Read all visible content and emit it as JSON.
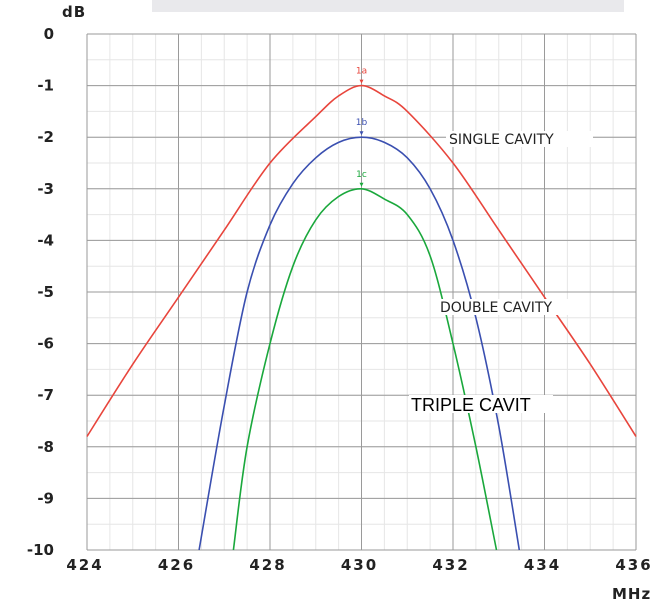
{
  "chart_data": {
    "type": "line",
    "xlabel": "MHz",
    "ylabel": "dB",
    "xlim": [
      424,
      436
    ],
    "ylim": [
      -10,
      0
    ],
    "x_ticks": [
      "424",
      "426",
      "428",
      "430",
      "432",
      "434",
      "436"
    ],
    "y_ticks": [
      "0",
      "-1",
      "-2",
      "-3",
      "-4",
      "-5",
      "-6",
      "-7",
      "-8",
      "-9",
      "-10"
    ],
    "grid": true,
    "series": [
      {
        "name": "SINGLE CAVITY",
        "color": "#e8453c",
        "marker": "1a",
        "peak": [
          430,
          -1.0
        ],
        "points": [
          [
            424,
            -7.8
          ],
          [
            425,
            -6.4
          ],
          [
            426,
            -5.1
          ],
          [
            427,
            -3.8
          ],
          [
            428,
            -2.5
          ],
          [
            429,
            -1.6
          ],
          [
            429.5,
            -1.2
          ],
          [
            430,
            -1.0
          ],
          [
            430.5,
            -1.2
          ],
          [
            431,
            -1.5
          ],
          [
            432,
            -2.5
          ],
          [
            433,
            -3.8
          ],
          [
            434,
            -5.1
          ],
          [
            435,
            -6.4
          ],
          [
            436,
            -7.8
          ]
        ]
      },
      {
        "name": "DOUBLE CAVITY",
        "color": "#3a4fb0",
        "marker": "1b",
        "peak": [
          430,
          -2.0
        ],
        "points": [
          [
            426.45,
            -10
          ],
          [
            427,
            -7.2
          ],
          [
            427.5,
            -5.0
          ],
          [
            428,
            -3.7
          ],
          [
            428.5,
            -2.9
          ],
          [
            429,
            -2.4
          ],
          [
            429.5,
            -2.1
          ],
          [
            430,
            -2.0
          ],
          [
            430.5,
            -2.1
          ],
          [
            431,
            -2.4
          ],
          [
            431.5,
            -3.0
          ],
          [
            432,
            -4.0
          ],
          [
            432.5,
            -5.5
          ],
          [
            433,
            -7.6
          ],
          [
            433.45,
            -10
          ]
        ]
      },
      {
        "name": "TRIPLE CAVIT",
        "color": "#1aa83c",
        "marker": "1c",
        "peak": [
          430,
          -3.0
        ],
        "points": [
          [
            427.2,
            -10
          ],
          [
            427.5,
            -8.0
          ],
          [
            428,
            -6.0
          ],
          [
            428.5,
            -4.5
          ],
          [
            429,
            -3.6
          ],
          [
            429.5,
            -3.15
          ],
          [
            430,
            -3.0
          ],
          [
            430.5,
            -3.2
          ],
          [
            431,
            -3.5
          ],
          [
            431.5,
            -4.3
          ],
          [
            432,
            -6.0
          ],
          [
            432.5,
            -8.0
          ],
          [
            432.95,
            -10
          ]
        ]
      }
    ],
    "annotations": [
      "SINGLE CAVITY",
      "DOUBLE CAVITY",
      "TRIPLE CAVIT"
    ]
  }
}
